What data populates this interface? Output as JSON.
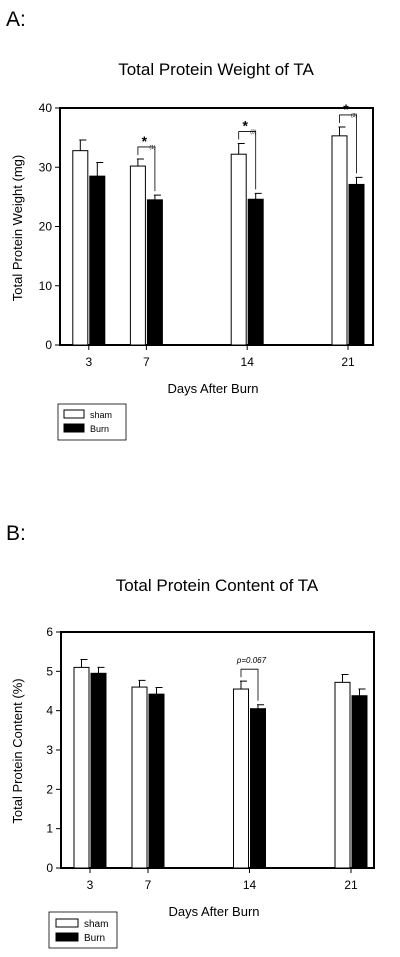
{
  "chart_data": [
    {
      "panel_label": "A:",
      "type": "bar",
      "title": "Total Protein Weight of TA",
      "xlabel": "Days After Burn",
      "ylabel": "Total Protein Weight (mg)",
      "ylim": [
        0,
        40
      ],
      "yticks": [
        "0",
        "10",
        "20",
        "30",
        "40"
      ],
      "categories": [
        "3",
        "7",
        "14",
        "21"
      ],
      "x": [
        3,
        7,
        14,
        21
      ],
      "series": [
        {
          "name": "sham",
          "color": "#ffffff",
          "values": [
            32.8,
            30.2,
            32.2,
            35.3
          ],
          "errors": [
            1.8,
            1.2,
            1.8,
            1.5
          ]
        },
        {
          "name": "Burn",
          "color": "#000000",
          "values": [
            28.5,
            24.5,
            24.6,
            27.1
          ],
          "errors": [
            2.3,
            0.8,
            1.0,
            1.2
          ]
        }
      ],
      "annotations": [
        {
          "category": "7",
          "symbol": "*",
          "note": "(1)"
        },
        {
          "category": "14",
          "symbol": "*",
          "note": "(3)"
        },
        {
          "category": "21",
          "symbol": "*",
          "note": "(3)"
        }
      ],
      "legend_position": "bottom-left"
    },
    {
      "panel_label": "B:",
      "type": "bar",
      "title": "Total Protein Content of TA",
      "xlabel": "Days After Burn",
      "ylabel": "Total Protein Content (%)",
      "ylim": [
        0,
        6
      ],
      "yticks": [
        "0",
        "1",
        "2",
        "3",
        "4",
        "5",
        "6"
      ],
      "categories": [
        "3",
        "7",
        "14",
        "21"
      ],
      "x": [
        3,
        7,
        14,
        21
      ],
      "series": [
        {
          "name": "sham",
          "color": "#ffffff",
          "values": [
            5.1,
            4.6,
            4.55,
            4.72
          ],
          "errors": [
            0.2,
            0.17,
            0.2,
            0.2
          ]
        },
        {
          "name": "Burn",
          "color": "#000000",
          "values": [
            4.95,
            4.42,
            4.05,
            4.38
          ],
          "errors": [
            0.15,
            0.17,
            0.1,
            0.17
          ]
        }
      ],
      "annotations": [
        {
          "category": "14",
          "symbol": "",
          "note": "p=0.067"
        }
      ],
      "legend_position": "bottom-left"
    }
  ]
}
